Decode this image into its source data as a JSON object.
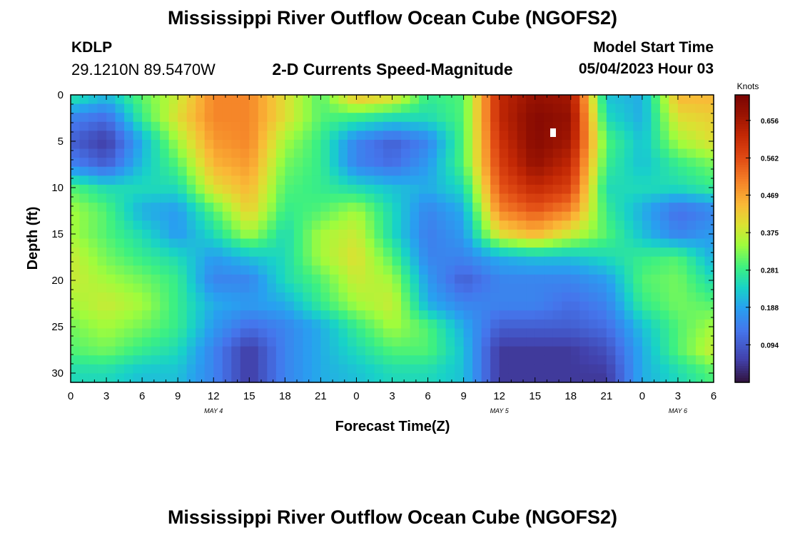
{
  "page": {
    "title": "Mississippi River Outflow Ocean Cube (NGOFS2)",
    "station_id": "KDLP",
    "coordinates": "29.1210N  89.5470W",
    "subtitle": "2-D Currents Speed-Magnitude",
    "model_start_label": "Model Start Time",
    "model_start_value": "05/04/2023 Hour 03",
    "footer_title": "Mississippi River Outflow Ocean Cube (NGOFS2)"
  },
  "chart_data": {
    "type": "heatmap",
    "xlabel": "Forecast Time(Z)",
    "ylabel": "Depth (ft)",
    "xlim": [
      0,
      54
    ],
    "ylim": [
      31,
      0
    ],
    "x_tick_labels": [
      "0",
      "3",
      "6",
      "9",
      "12",
      "15",
      "18",
      "21",
      "0",
      "3",
      "6",
      "9",
      "12",
      "15",
      "18",
      "21",
      "0",
      "3",
      "6"
    ],
    "y_ticks": [
      0,
      5,
      10,
      15,
      20,
      25,
      30
    ],
    "date_labels": [
      {
        "label": "MAY 4",
        "hour": 12
      },
      {
        "label": "MAY 5",
        "hour": 36
      },
      {
        "label": "MAY 6",
        "hour": 51
      }
    ],
    "colorbar": {
      "unit": "Knots",
      "min": 0,
      "max": 0.72,
      "ticks": [
        "0.094",
        "0.188",
        "0.281",
        "0.375",
        "0.469",
        "0.562",
        "0.656"
      ],
      "tick_values": [
        0.094,
        0.188,
        0.281,
        0.375,
        0.469,
        0.562,
        0.656
      ],
      "colormap": "turbo"
    },
    "rows_depth_ft": [
      0,
      2.5,
      5,
      7.5,
      10,
      12.5,
      15,
      17.5,
      20,
      22.5,
      25,
      27.5,
      30
    ],
    "cols_hour": [
      0,
      3,
      6,
      9,
      12,
      15,
      18,
      21,
      24,
      27,
      30,
      33,
      36,
      39,
      42,
      45,
      48,
      51,
      54
    ],
    "values": [
      [
        0.28,
        0.22,
        0.31,
        0.38,
        0.5,
        0.5,
        0.4,
        0.3,
        0.45,
        0.42,
        0.28,
        0.3,
        0.62,
        0.68,
        0.66,
        0.22,
        0.2,
        0.45,
        0.45
      ],
      [
        0.15,
        0.12,
        0.28,
        0.4,
        0.5,
        0.5,
        0.4,
        0.3,
        0.28,
        0.25,
        0.25,
        0.3,
        0.62,
        0.7,
        0.68,
        0.25,
        0.2,
        0.4,
        0.42
      ],
      [
        0.1,
        0.05,
        0.2,
        0.35,
        0.48,
        0.5,
        0.35,
        0.28,
        0.15,
        0.1,
        0.15,
        0.3,
        0.6,
        0.7,
        0.66,
        0.3,
        0.22,
        0.35,
        0.4
      ],
      [
        0.15,
        0.1,
        0.22,
        0.3,
        0.45,
        0.48,
        0.32,
        0.28,
        0.15,
        0.12,
        0.18,
        0.3,
        0.58,
        0.68,
        0.62,
        0.28,
        0.22,
        0.28,
        0.32
      ],
      [
        0.3,
        0.25,
        0.25,
        0.25,
        0.4,
        0.45,
        0.3,
        0.28,
        0.25,
        0.22,
        0.2,
        0.25,
        0.55,
        0.62,
        0.58,
        0.25,
        0.25,
        0.25,
        0.28
      ],
      [
        0.35,
        0.3,
        0.2,
        0.18,
        0.3,
        0.42,
        0.28,
        0.3,
        0.35,
        0.25,
        0.15,
        0.2,
        0.5,
        0.55,
        0.5,
        0.28,
        0.2,
        0.12,
        0.15
      ],
      [
        0.35,
        0.3,
        0.25,
        0.18,
        0.25,
        0.35,
        0.25,
        0.35,
        0.38,
        0.25,
        0.14,
        0.18,
        0.4,
        0.45,
        0.38,
        0.3,
        0.22,
        0.15,
        0.18
      ],
      [
        0.38,
        0.32,
        0.28,
        0.25,
        0.18,
        0.22,
        0.25,
        0.35,
        0.4,
        0.3,
        0.15,
        0.15,
        0.2,
        0.22,
        0.22,
        0.25,
        0.28,
        0.3,
        0.2
      ],
      [
        0.38,
        0.35,
        0.32,
        0.28,
        0.15,
        0.15,
        0.25,
        0.3,
        0.38,
        0.35,
        0.18,
        0.1,
        0.15,
        0.15,
        0.15,
        0.18,
        0.3,
        0.32,
        0.25
      ],
      [
        0.35,
        0.38,
        0.35,
        0.28,
        0.2,
        0.18,
        0.2,
        0.28,
        0.35,
        0.38,
        0.2,
        0.15,
        0.15,
        0.15,
        0.12,
        0.15,
        0.28,
        0.32,
        0.3
      ],
      [
        0.32,
        0.35,
        0.32,
        0.28,
        0.18,
        0.12,
        0.15,
        0.2,
        0.28,
        0.35,
        0.3,
        0.2,
        0.1,
        0.1,
        0.1,
        0.12,
        0.22,
        0.3,
        0.35
      ],
      [
        0.3,
        0.32,
        0.28,
        0.25,
        0.15,
        0.05,
        0.15,
        0.2,
        0.25,
        0.3,
        0.3,
        0.22,
        0.05,
        0.05,
        0.05,
        0.08,
        0.2,
        0.3,
        0.38
      ],
      [
        0.25,
        0.25,
        0.22,
        0.22,
        0.15,
        0.05,
        0.15,
        0.2,
        0.22,
        0.25,
        0.25,
        0.22,
        0.05,
        0.05,
        0.05,
        0.05,
        0.2,
        0.25,
        0.3
      ]
    ]
  }
}
